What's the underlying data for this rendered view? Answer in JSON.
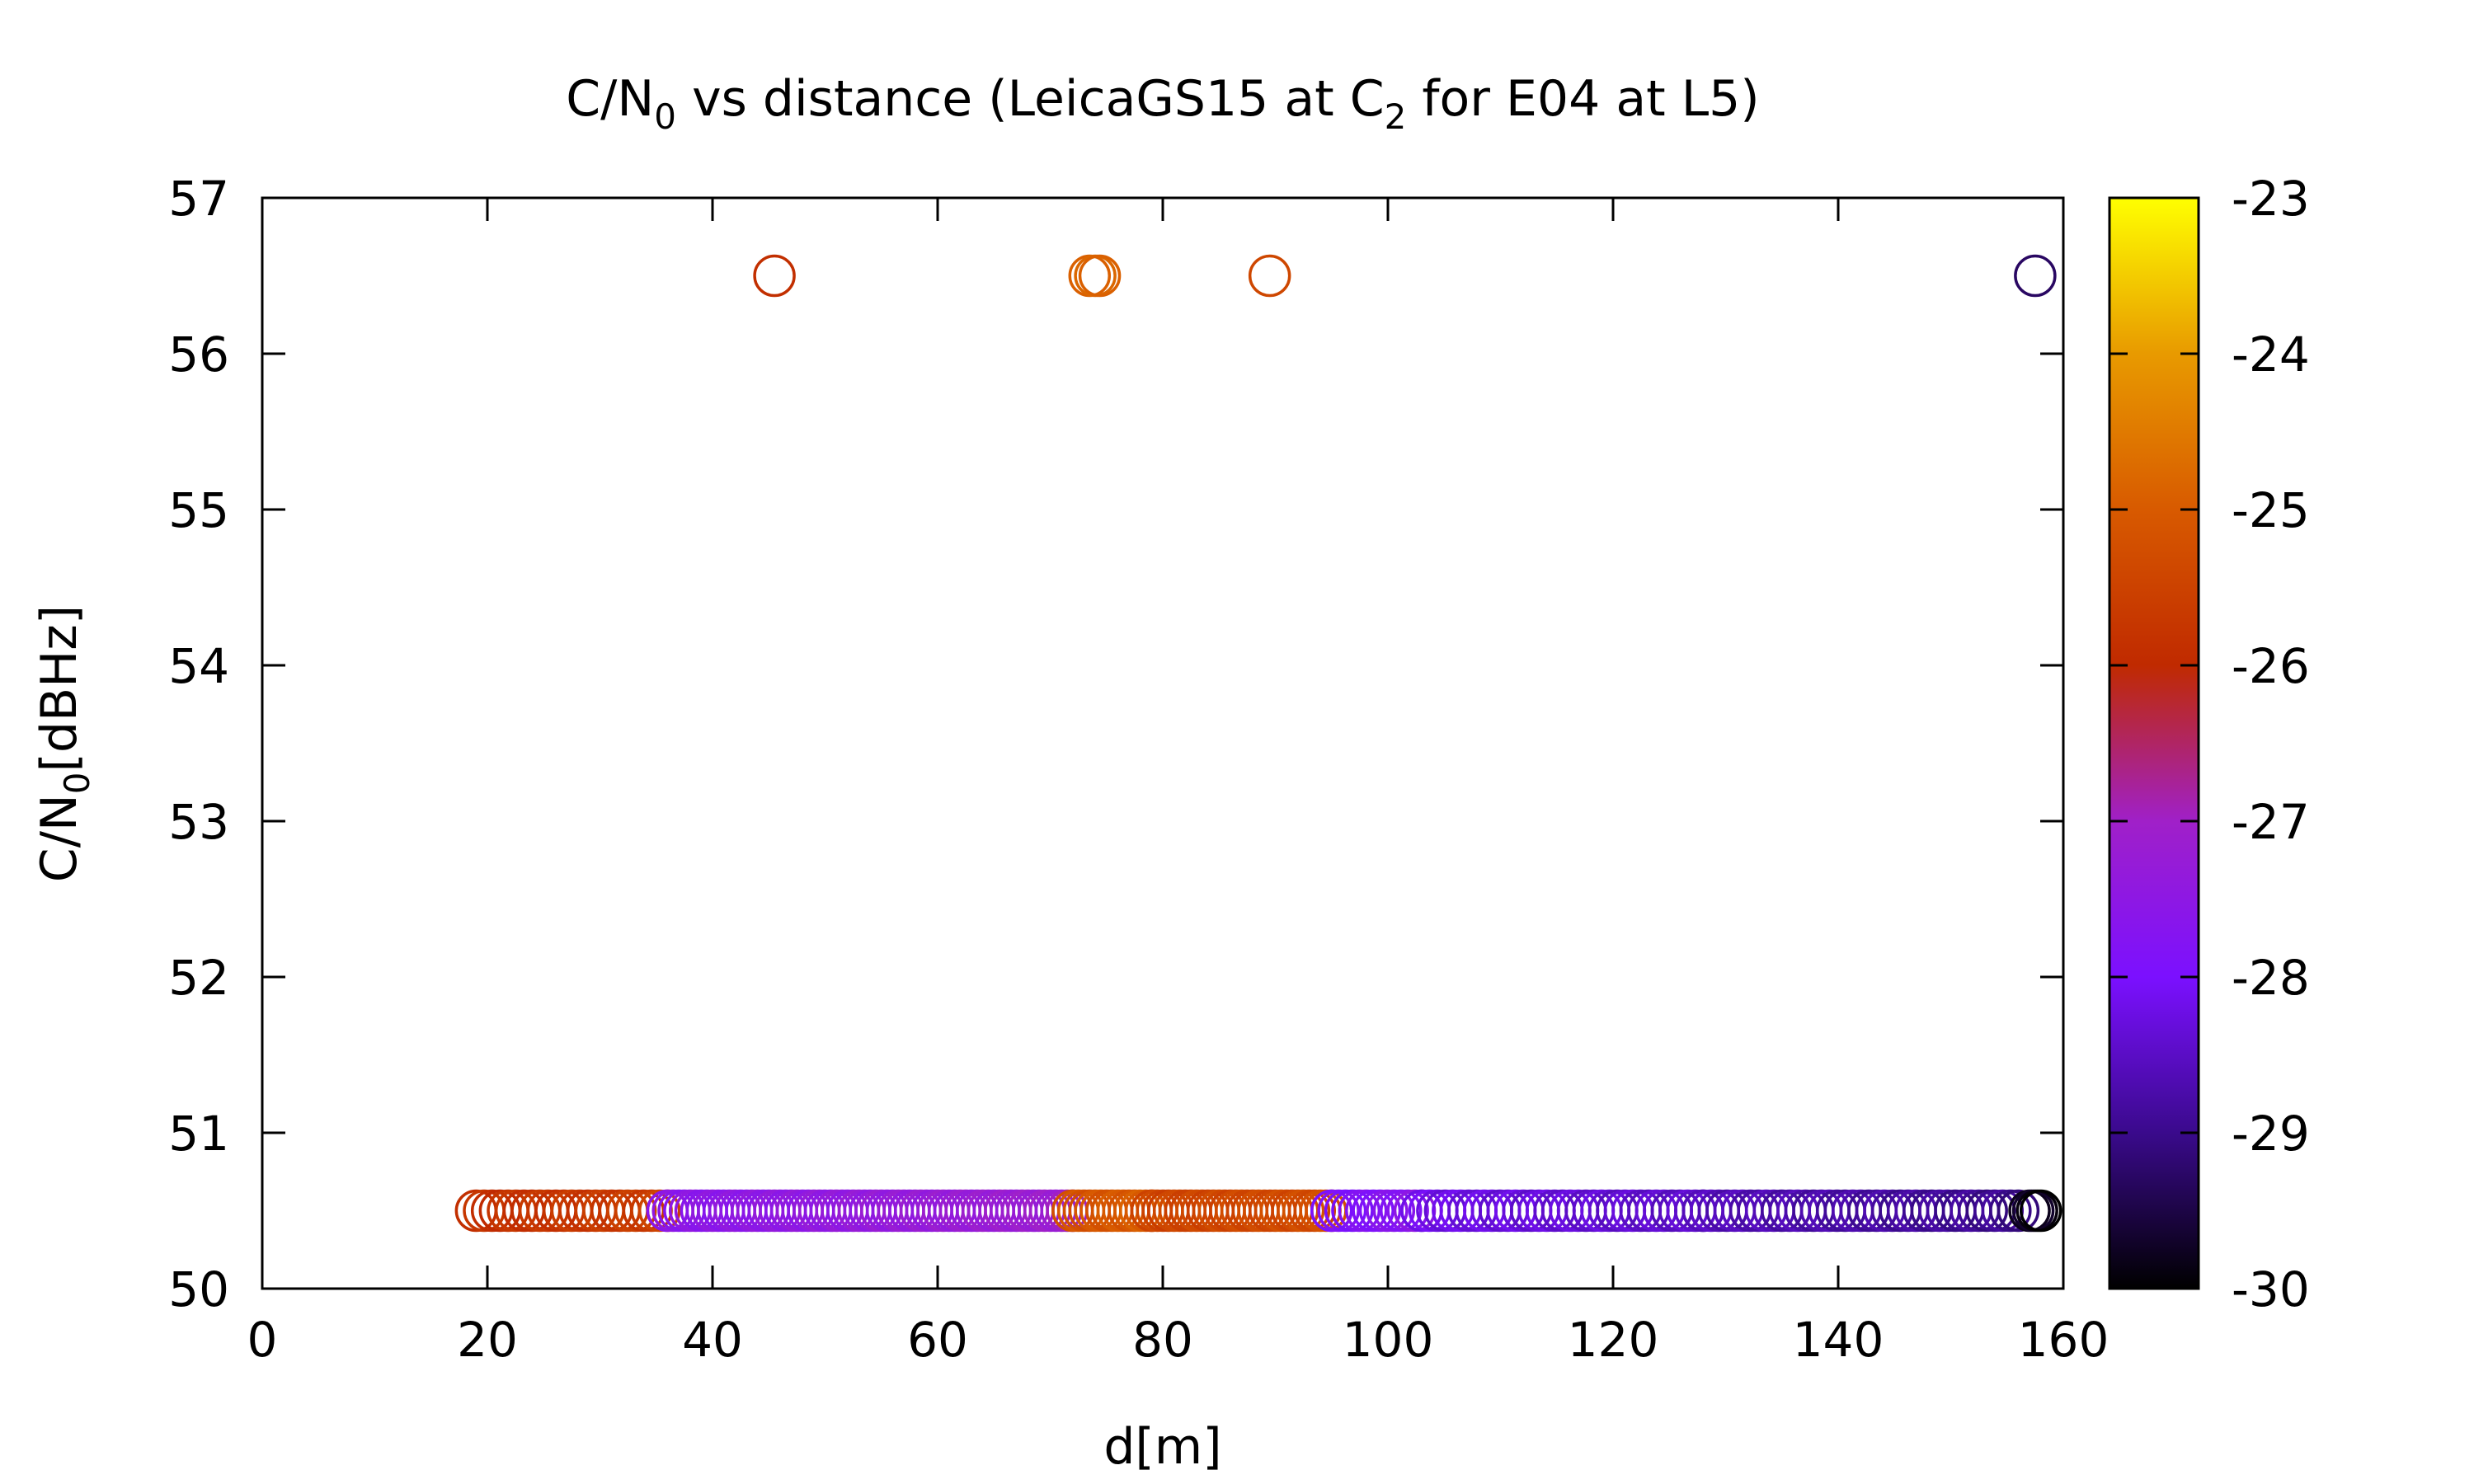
{
  "chart_data": {
    "type": "scatter",
    "title": {
      "main": "C/N",
      "main_sub": "0",
      "mid": " vs distance (LeicaGS15 at C",
      "mid_sub": "2",
      "end": " for E04 at L5)"
    },
    "xlabel": "d[m]",
    "ylabel": {
      "main": "C/N",
      "sub": "0",
      "end": "[dBHz]"
    },
    "xlim": [
      0,
      160
    ],
    "ylim": [
      50,
      57
    ],
    "xticks": [
      0,
      20,
      40,
      60,
      80,
      100,
      120,
      140,
      160
    ],
    "yticks": [
      50,
      51,
      52,
      53,
      54,
      55,
      56,
      57
    ],
    "colorbar": {
      "range": [
        -30,
        -23
      ],
      "ticks": [
        -30,
        -29,
        -28,
        -27,
        -26,
        -25,
        -24,
        -23
      ],
      "palette": [
        {
          "v": -30,
          "color": "#000000"
        },
        {
          "v": -29,
          "color": "#3a0a8c"
        },
        {
          "v": -28,
          "color": "#7b10ff"
        },
        {
          "v": -27,
          "color": "#a020c8"
        },
        {
          "v": -26,
          "color": "#c02a00"
        },
        {
          "v": -25,
          "color": "#d85a00"
        },
        {
          "v": -24,
          "color": "#e89a00"
        },
        {
          "v": -23,
          "color": "#ffff00"
        }
      ]
    },
    "grid": false,
    "series": [
      {
        "points": [
          {
            "x": 45.5,
            "y": 56.5,
            "c": -25.9
          },
          {
            "x": 73.5,
            "y": 56.5,
            "c": -24.9
          },
          {
            "x": 74.0,
            "y": 56.5,
            "c": -24.8
          },
          {
            "x": 74.4,
            "y": 56.5,
            "c": -24.9
          },
          {
            "x": 89.5,
            "y": 56.5,
            "c": -25.4
          },
          {
            "x": 157.5,
            "y": 56.5,
            "c": -29.3
          }
        ],
        "runs": [
          {
            "x0": 19,
            "x1": 36,
            "step": 0.7,
            "y": 50.5,
            "c0": -25.9,
            "c1": -25.6
          },
          {
            "x0": 36,
            "x1": 72,
            "step": 0.5,
            "y": 50.5,
            "c0": -27.6,
            "c1": -27.1
          },
          {
            "x0": 72,
            "x1": 79,
            "step": 0.5,
            "y": 50.5,
            "c0": -25.2,
            "c1": -25.0
          },
          {
            "x0": 79,
            "x1": 95,
            "step": 0.5,
            "y": 50.5,
            "c0": -25.5,
            "c1": -25.3
          },
          {
            "x0": 95,
            "x1": 103,
            "step": 0.6,
            "y": 50.5,
            "c0": -28.0,
            "c1": -27.6
          },
          {
            "x0": 103,
            "x1": 128,
            "step": 0.7,
            "y": 50.5,
            "c0": -28.2,
            "c1": -28.5
          },
          {
            "x0": 128,
            "x1": 156,
            "step": 0.7,
            "y": 50.5,
            "c0": -28.6,
            "c1": -29.0
          },
          {
            "x0": 157,
            "x1": 158,
            "step": 0.4,
            "y": 50.5,
            "c0": -29.8,
            "c1": -29.9
          }
        ]
      }
    ]
  }
}
